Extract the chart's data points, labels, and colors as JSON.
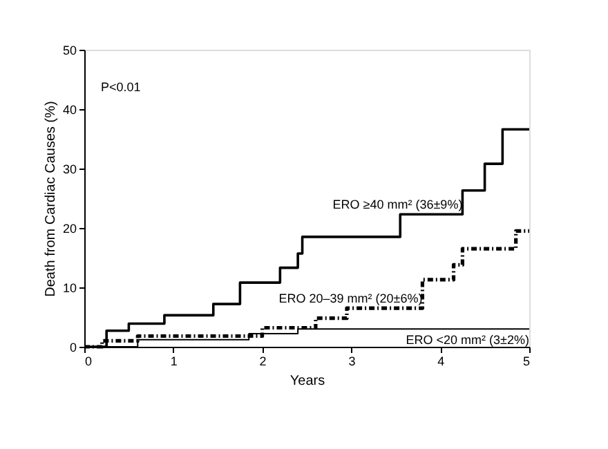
{
  "chart_data": {
    "type": "step",
    "xlabel": "Years",
    "ylabel": "Death from Cardiac Causes (%)",
    "xlim": [
      0,
      5
    ],
    "xticks": [
      0,
      1,
      2,
      3,
      4,
      5
    ],
    "ylim": [
      0,
      50
    ],
    "yticks": [
      0,
      10,
      20,
      30,
      40,
      50
    ],
    "grid": false,
    "legend": false,
    "marker": "none",
    "annotations": [
      "P<0.01"
    ],
    "series": [
      {
        "name": "ERO ≥40 mm² (36±9%)",
        "color": "#000000",
        "line_style": "solid",
        "x": [
          0,
          0.25,
          0.5,
          0.9,
          1.45,
          1.75,
          2.2,
          2.4,
          2.45,
          3.55,
          4.25,
          4.5,
          4.7,
          5
        ],
        "values": [
          0,
          2.7,
          3.9,
          5.3,
          7.2,
          10.8,
          13.3,
          15.7,
          18.5,
          22.3,
          26.3,
          30.8,
          36.6,
          36.6
        ]
      },
      {
        "name": "ERO 20–39 mm² (20±6%)",
        "color": "#000000",
        "line_style": "dotted",
        "x": [
          0,
          0.2,
          0.6,
          2.0,
          2.6,
          2.95,
          3.8,
          4.15,
          4.25,
          4.85,
          5
        ],
        "values": [
          0,
          1.0,
          1.8,
          3.2,
          4.8,
          6.5,
          11.3,
          13.8,
          16.5,
          19.5,
          19.5
        ]
      },
      {
        "name": "ERO <20 mm² (3±2%)",
        "color": "#000000",
        "line_style": "solid",
        "x": [
          0,
          0.6,
          1.85,
          2.4,
          5
        ],
        "values": [
          0,
          1.2,
          2.2,
          3.0,
          3.0
        ]
      }
    ]
  }
}
